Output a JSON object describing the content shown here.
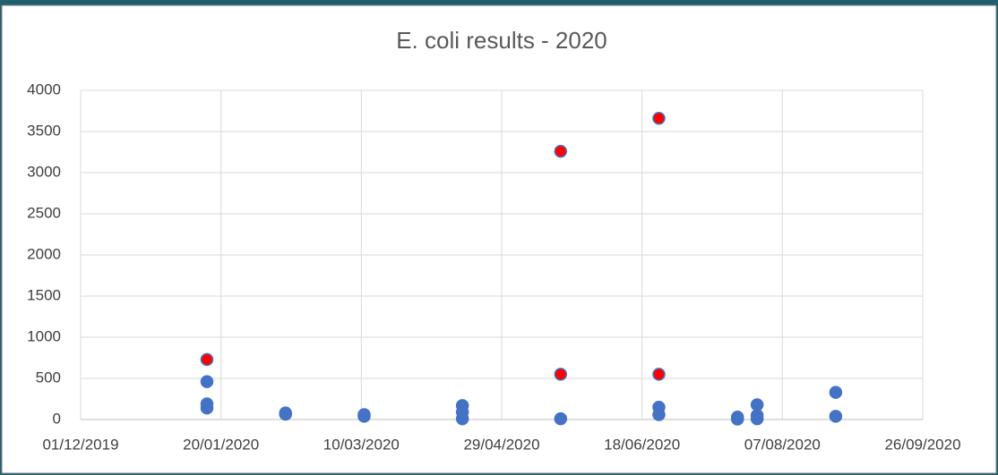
{
  "chart_data": {
    "type": "scatter",
    "title": "E. coli results - 2020",
    "x": [
      "2020-01-15",
      "2020-01-15",
      "2020-01-15",
      "2020-01-15",
      "2020-02-12",
      "2020-02-12",
      "2020-03-11",
      "2020-03-11",
      "2020-04-15",
      "2020-04-15",
      "2020-04-15",
      "2020-05-20",
      "2020-05-20",
      "2020-05-20",
      "2020-06-24",
      "2020-06-24",
      "2020-06-24",
      "2020-06-24",
      "2020-07-22",
      "2020-07-22",
      "2020-07-29",
      "2020-07-29",
      "2020-07-29",
      "2020-08-26",
      "2020-08-26"
    ],
    "values": [
      730,
      460,
      190,
      140,
      80,
      65,
      60,
      40,
      170,
      90,
      10,
      3260,
      550,
      10,
      3660,
      550,
      150,
      60,
      30,
      5,
      180,
      50,
      10,
      330,
      40
    ],
    "colors": [
      "#ff0000",
      "#4472c4",
      "#4472c4",
      "#4472c4",
      "#4472c4",
      "#4472c4",
      "#4472c4",
      "#4472c4",
      "#4472c4",
      "#4472c4",
      "#4472c4",
      "#ff0000",
      "#ff0000",
      "#4472c4",
      "#ff0000",
      "#ff0000",
      "#4472c4",
      "#4472c4",
      "#4472c4",
      "#4472c4",
      "#4472c4",
      "#4472c4",
      "#4472c4",
      "#4472c4",
      "#4472c4"
    ],
    "xlim": [
      "2019-12-01",
      "2020-09-26"
    ],
    "xticks": [
      {
        "value": "2019-12-01",
        "label": "01/12/2019"
      },
      {
        "value": "2020-01-20",
        "label": "20/01/2020"
      },
      {
        "value": "2020-03-10",
        "label": "10/03/2020"
      },
      {
        "value": "2020-04-29",
        "label": "29/04/2020"
      },
      {
        "value": "2020-06-18",
        "label": "18/06/2020"
      },
      {
        "value": "2020-08-07",
        "label": "07/08/2020"
      },
      {
        "value": "2020-09-26",
        "label": "26/09/2020"
      }
    ],
    "ylim": [
      0,
      4000
    ],
    "yticks": [
      0,
      500,
      1000,
      1500,
      2000,
      2500,
      3000,
      3500,
      4000
    ],
    "grid": true
  }
}
